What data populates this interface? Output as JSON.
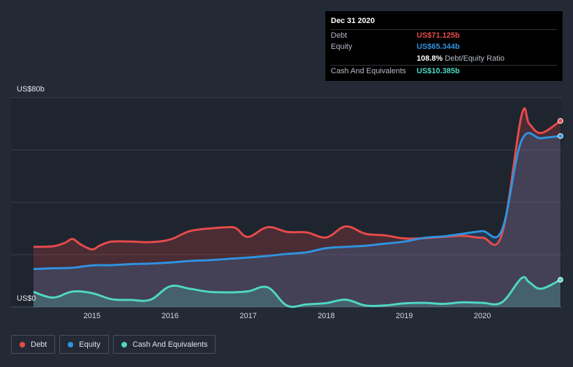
{
  "tooltip": {
    "date": "Dec 31 2020",
    "rows": [
      {
        "label": "Debt",
        "value": "US$71.125b",
        "color": "#e64b4b"
      },
      {
        "label": "Equity",
        "value": "US$65.344b",
        "color": "#2f93e0"
      },
      {
        "label": "",
        "value": "108.8%",
        "suffix": "Debt/Equity Ratio",
        "color": "#ffffff"
      },
      {
        "label": "Cash And Equivalents",
        "value": "US$10.385b",
        "color": "#4fd8c4"
      }
    ]
  },
  "legend": [
    {
      "label": "Debt",
      "color": "#e64b4b"
    },
    {
      "label": "Equity",
      "color": "#2f93e0"
    },
    {
      "label": "Cash And Equivalents",
      "color": "#4fd8c4"
    }
  ],
  "chart_data": {
    "type": "area",
    "ylabel_top": "US$80b",
    "ylabel_bottom": "US$0",
    "ylim": [
      0,
      80
    ],
    "xlim": [
      2014.25,
      2021.0
    ],
    "x_ticks": [
      2015,
      2016,
      2017,
      2018,
      2019,
      2020
    ],
    "x_tick_labels": [
      "2015",
      "2016",
      "2017",
      "2018",
      "2019",
      "2020"
    ],
    "grid": true,
    "series": [
      {
        "name": "Debt",
        "color": "#e64b4b",
        "points": [
          [
            2014.25,
            23.0
          ],
          [
            2014.5,
            23.2
          ],
          [
            2014.65,
            24.5
          ],
          [
            2014.75,
            26.0
          ],
          [
            2014.85,
            24.0
          ],
          [
            2015.0,
            22.0
          ],
          [
            2015.1,
            23.5
          ],
          [
            2015.25,
            25.0
          ],
          [
            2015.5,
            25.0
          ],
          [
            2015.75,
            24.8
          ],
          [
            2016.0,
            25.8
          ],
          [
            2016.25,
            29.0
          ],
          [
            2016.5,
            30.0
          ],
          [
            2016.75,
            30.5
          ],
          [
            2016.85,
            30.0
          ],
          [
            2017.0,
            26.8
          ],
          [
            2017.25,
            30.5
          ],
          [
            2017.5,
            28.7
          ],
          [
            2017.75,
            28.5
          ],
          [
            2018.0,
            26.6
          ],
          [
            2018.25,
            30.8
          ],
          [
            2018.5,
            28.0
          ],
          [
            2018.75,
            27.4
          ],
          [
            2019.0,
            26.2
          ],
          [
            2019.25,
            26.3
          ],
          [
            2019.5,
            26.8
          ],
          [
            2019.75,
            27.2
          ],
          [
            2020.0,
            26.5
          ],
          [
            2020.25,
            27.8
          ],
          [
            2020.5,
            73.0
          ],
          [
            2020.6,
            70.0
          ],
          [
            2020.75,
            66.5
          ],
          [
            2021.0,
            71.125
          ]
        ]
      },
      {
        "name": "Equity",
        "color": "#2f93e0",
        "points": [
          [
            2014.25,
            14.5
          ],
          [
            2014.5,
            14.8
          ],
          [
            2014.75,
            15.0
          ],
          [
            2015.0,
            15.9
          ],
          [
            2015.25,
            16.0
          ],
          [
            2015.5,
            16.4
          ],
          [
            2015.75,
            16.6
          ],
          [
            2016.0,
            17.0
          ],
          [
            2016.25,
            17.6
          ],
          [
            2016.5,
            17.9
          ],
          [
            2016.75,
            18.4
          ],
          [
            2017.0,
            18.9
          ],
          [
            2017.25,
            19.5
          ],
          [
            2017.5,
            20.3
          ],
          [
            2017.75,
            20.9
          ],
          [
            2018.0,
            22.5
          ],
          [
            2018.25,
            23.0
          ],
          [
            2018.5,
            23.4
          ],
          [
            2018.75,
            24.2
          ],
          [
            2019.0,
            25.0
          ],
          [
            2019.25,
            26.4
          ],
          [
            2019.5,
            27.0
          ],
          [
            2019.75,
            28.0
          ],
          [
            2020.0,
            29.0
          ],
          [
            2020.25,
            29.4
          ],
          [
            2020.5,
            63.5
          ],
          [
            2020.75,
            64.5
          ],
          [
            2021.0,
            65.344
          ]
        ]
      },
      {
        "name": "Cash And Equivalents",
        "color": "#4fd8c4",
        "points": [
          [
            2014.25,
            5.8
          ],
          [
            2014.5,
            3.6
          ],
          [
            2014.75,
            5.9
          ],
          [
            2015.0,
            5.3
          ],
          [
            2015.25,
            3.0
          ],
          [
            2015.5,
            2.7
          ],
          [
            2015.75,
            2.8
          ],
          [
            2016.0,
            7.9
          ],
          [
            2016.25,
            7.0
          ],
          [
            2016.5,
            5.8
          ],
          [
            2016.75,
            5.6
          ],
          [
            2017.0,
            6.0
          ],
          [
            2017.25,
            7.5
          ],
          [
            2017.5,
            0.5
          ],
          [
            2017.75,
            1.0
          ],
          [
            2018.0,
            1.5
          ],
          [
            2018.25,
            2.8
          ],
          [
            2018.5,
            0.6
          ],
          [
            2018.75,
            0.6
          ],
          [
            2019.0,
            1.4
          ],
          [
            2019.25,
            1.6
          ],
          [
            2019.5,
            1.2
          ],
          [
            2019.75,
            1.8
          ],
          [
            2020.0,
            1.6
          ],
          [
            2020.25,
            1.8
          ],
          [
            2020.5,
            11.0
          ],
          [
            2020.6,
            9.5
          ],
          [
            2020.75,
            7.0
          ],
          [
            2021.0,
            10.385
          ]
        ]
      }
    ]
  }
}
